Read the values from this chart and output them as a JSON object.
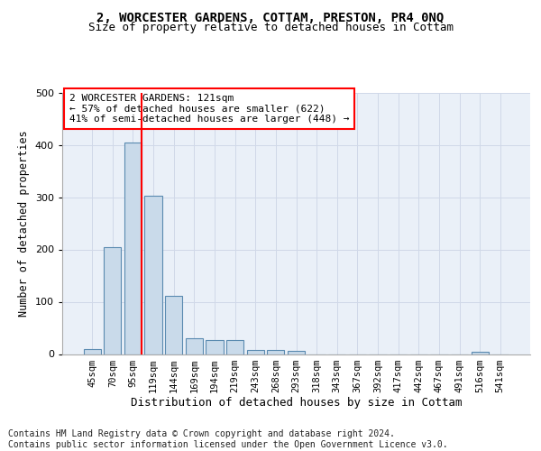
{
  "title": "2, WORCESTER GARDENS, COTTAM, PRESTON, PR4 0NQ",
  "subtitle": "Size of property relative to detached houses in Cottam",
  "xlabel": "Distribution of detached houses by size in Cottam",
  "ylabel": "Number of detached properties",
  "bin_labels": [
    "45sqm",
    "70sqm",
    "95sqm",
    "119sqm",
    "144sqm",
    "169sqm",
    "194sqm",
    "219sqm",
    "243sqm",
    "268sqm",
    "293sqm",
    "318sqm",
    "343sqm",
    "367sqm",
    "392sqm",
    "417sqm",
    "442sqm",
    "467sqm",
    "491sqm",
    "516sqm",
    "541sqm"
  ],
  "bar_values": [
    10,
    205,
    405,
    303,
    112,
    30,
    27,
    26,
    8,
    8,
    6,
    0,
    0,
    0,
    0,
    0,
    0,
    0,
    0,
    5,
    0
  ],
  "bar_color": "#c9daea",
  "bar_edgecolor": "#5a8ab0",
  "grid_color": "#d0d8e8",
  "background_color": "#eaf0f8",
  "red_line_bin": 2,
  "annotation_text": "2 WORCESTER GARDENS: 121sqm\n← 57% of detached houses are smaller (622)\n41% of semi-detached houses are larger (448) →",
  "annotation_fontsize": 8,
  "title_fontsize": 10,
  "subtitle_fontsize": 9,
  "ylabel_fontsize": 8.5,
  "xlabel_fontsize": 9,
  "tick_fontsize": 7.5,
  "ytick_fontsize": 8,
  "footer_text": "Contains HM Land Registry data © Crown copyright and database right 2024.\nContains public sector information licensed under the Open Government Licence v3.0.",
  "footer_fontsize": 7,
  "ylim": [
    0,
    500
  ]
}
